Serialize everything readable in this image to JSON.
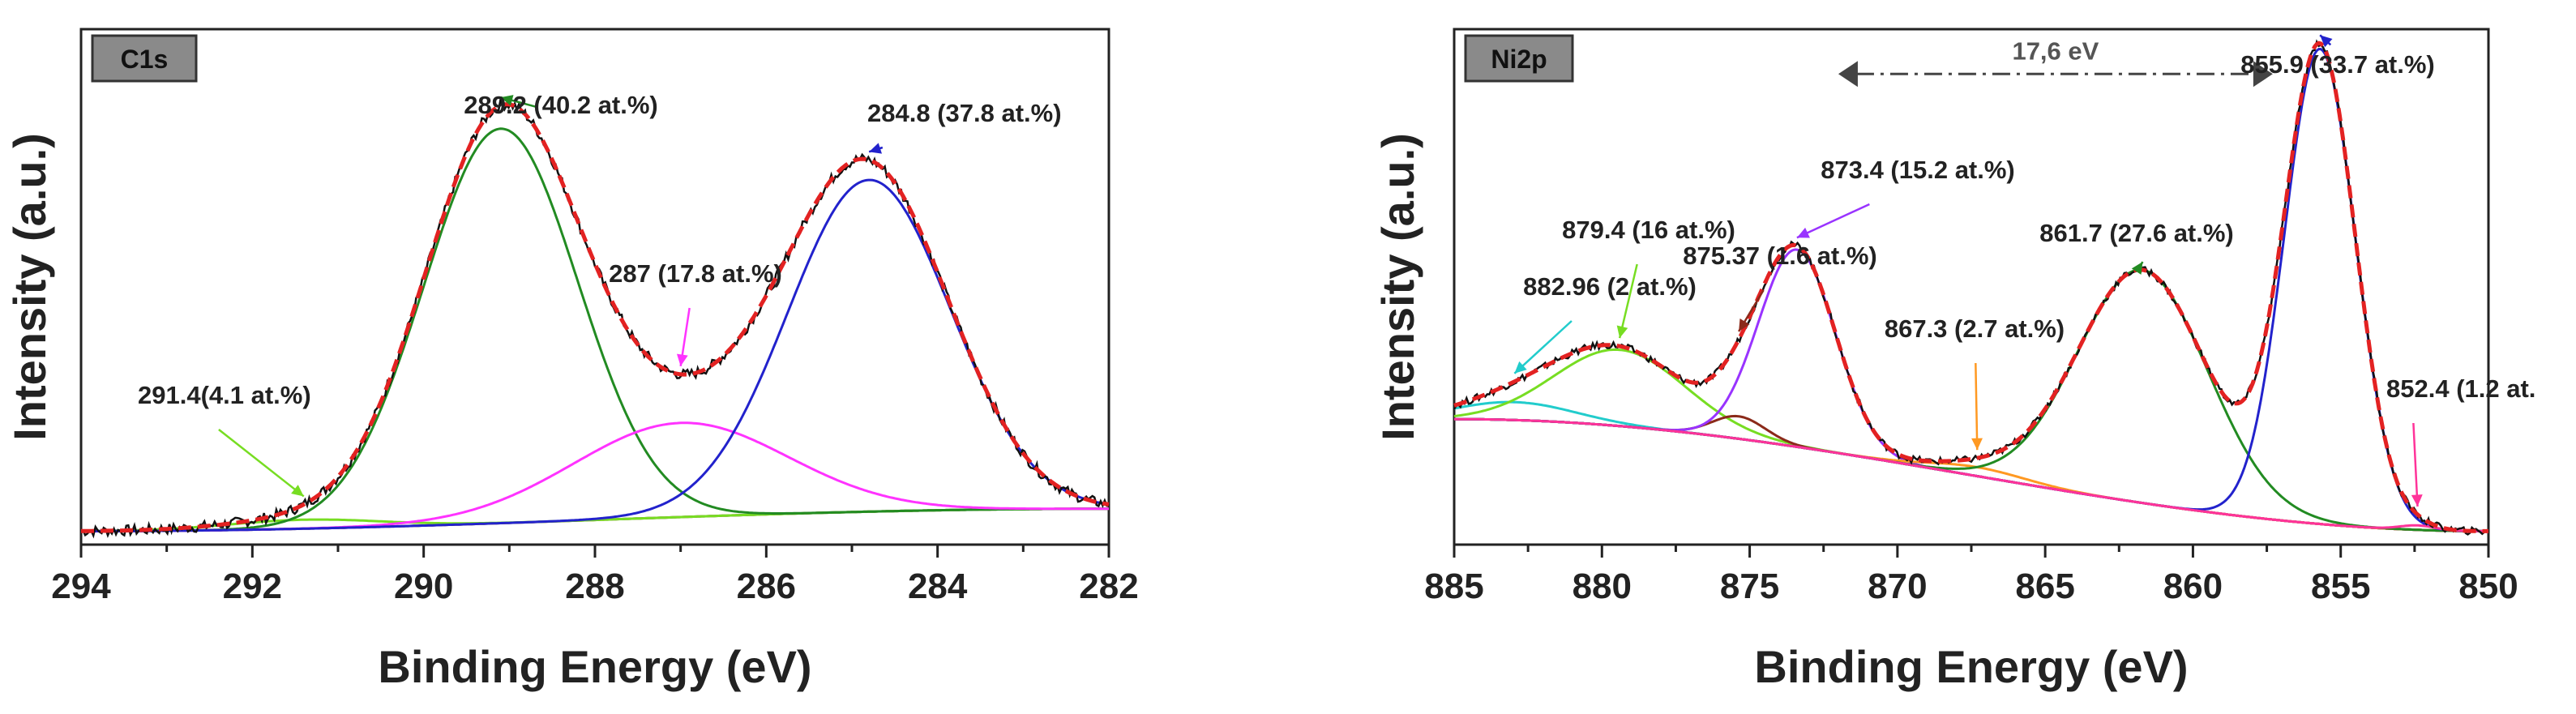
{
  "chart_data": [
    {
      "type": "line",
      "title": "C1s",
      "xlabel": "Binding Energy (eV)",
      "ylabel": "Intensity (a.u.)",
      "xlim": [
        294,
        282
      ],
      "ylim": [
        0,
        1.15
      ],
      "x_reversed": true,
      "xticks": [
        294,
        292,
        290,
        288,
        286,
        284,
        282
      ],
      "baseline": {
        "start": 0.03,
        "end": 0.08
      },
      "components": [
        {
          "name": "291.4",
          "center": 291.4,
          "height": 0.02,
          "width": 0.9,
          "color": "#77dd22"
        },
        {
          "name": "289.2",
          "center": 289.1,
          "height": 0.88,
          "width": 0.9,
          "color": "#228b22"
        },
        {
          "name": "287",
          "center": 287.0,
          "height": 0.21,
          "width": 1.25,
          "color": "#ff33ff"
        },
        {
          "name": "284.8",
          "center": 284.8,
          "height": 0.74,
          "width": 0.95,
          "color": "#2222cc"
        }
      ],
      "envelope_color": "#e32222",
      "raw_color": "#111111",
      "annotations": [
        {
          "text": "289.2 (40.2 at.%)",
          "peak": 289.1,
          "color": "#228b22"
        },
        {
          "text": "287 (17.8 at.%)",
          "peak": 287.0,
          "color": "#ff33ff"
        },
        {
          "text": "284.8 (37.8 at.%)",
          "peak": 284.8,
          "color": "#2222cc"
        },
        {
          "text": "291.4(4.1 at.%)",
          "peak": 291.4,
          "color": "#77dd22"
        }
      ]
    },
    {
      "type": "line",
      "title": "Ni2p",
      "xlabel": "Binding Energy (eV)",
      "ylabel": "Intensity (a.u.)",
      "xlim": [
        885,
        850
      ],
      "ylim": [
        0,
        1.15
      ],
      "x_reversed": true,
      "xticks": [
        885,
        880,
        875,
        870,
        865,
        860,
        855,
        850
      ],
      "baseline": {
        "start": 0.28,
        "end": 0.03
      },
      "components": [
        {
          "name": "882.96",
          "center": 882.96,
          "height": 0.04,
          "width": 2.0,
          "color": "#22cccc"
        },
        {
          "name": "879.4",
          "center": 879.4,
          "height": 0.17,
          "width": 2.2,
          "color": "#77dd22"
        },
        {
          "name": "875.37",
          "center": 875.37,
          "height": 0.05,
          "width": 0.9,
          "color": "#8b2a1a"
        },
        {
          "name": "873.4",
          "center": 873.4,
          "height": 0.44,
          "width": 1.3,
          "color": "#9933ff"
        },
        {
          "name": "867.3",
          "center": 867.3,
          "height": 0.02,
          "width": 1.6,
          "color": "#ff9922"
        },
        {
          "name": "861.7",
          "center": 861.7,
          "height": 0.52,
          "width": 2.2,
          "color": "#228b22"
        },
        {
          "name": "855.9",
          "center": 855.7,
          "height": 1.06,
          "width": 1.2,
          "color": "#2222cc"
        },
        {
          "name": "852.4",
          "center": 852.4,
          "height": 0.01,
          "width": 0.6,
          "color": "#ff3399"
        }
      ],
      "envelope_color": "#e32222",
      "raw_color": "#111111",
      "splitting": {
        "text": "17,6 eV",
        "from": 872,
        "to": 857.3,
        "level": 1.05
      },
      "annotations": [
        {
          "text": "855.9 (33.7 at.%)",
          "peak": 855.7,
          "color": "#2222cc"
        },
        {
          "text": "873.4 (15.2 at.%)",
          "peak": 873.4,
          "color": "#9933ff"
        },
        {
          "text": "879.4 (16 at.%)",
          "peak": 879.4,
          "color": "#77dd22"
        },
        {
          "text": "875.37 (1.6 at.%)",
          "peak": 875.37,
          "color": "#8b2a1a"
        },
        {
          "text": "882.96 (2 at.%)",
          "peak": 882.96,
          "color": "#22cccc"
        },
        {
          "text": "861.7 (27.6 at.%)",
          "peak": 861.7,
          "color": "#228b22"
        },
        {
          "text": "867.3 (2.7 at.%)",
          "peak": 867.3,
          "color": "#ff9922"
        },
        {
          "text": "852.4 (1.2 at.",
          "peak": 852.4,
          "color": "#ff3399"
        }
      ]
    }
  ]
}
